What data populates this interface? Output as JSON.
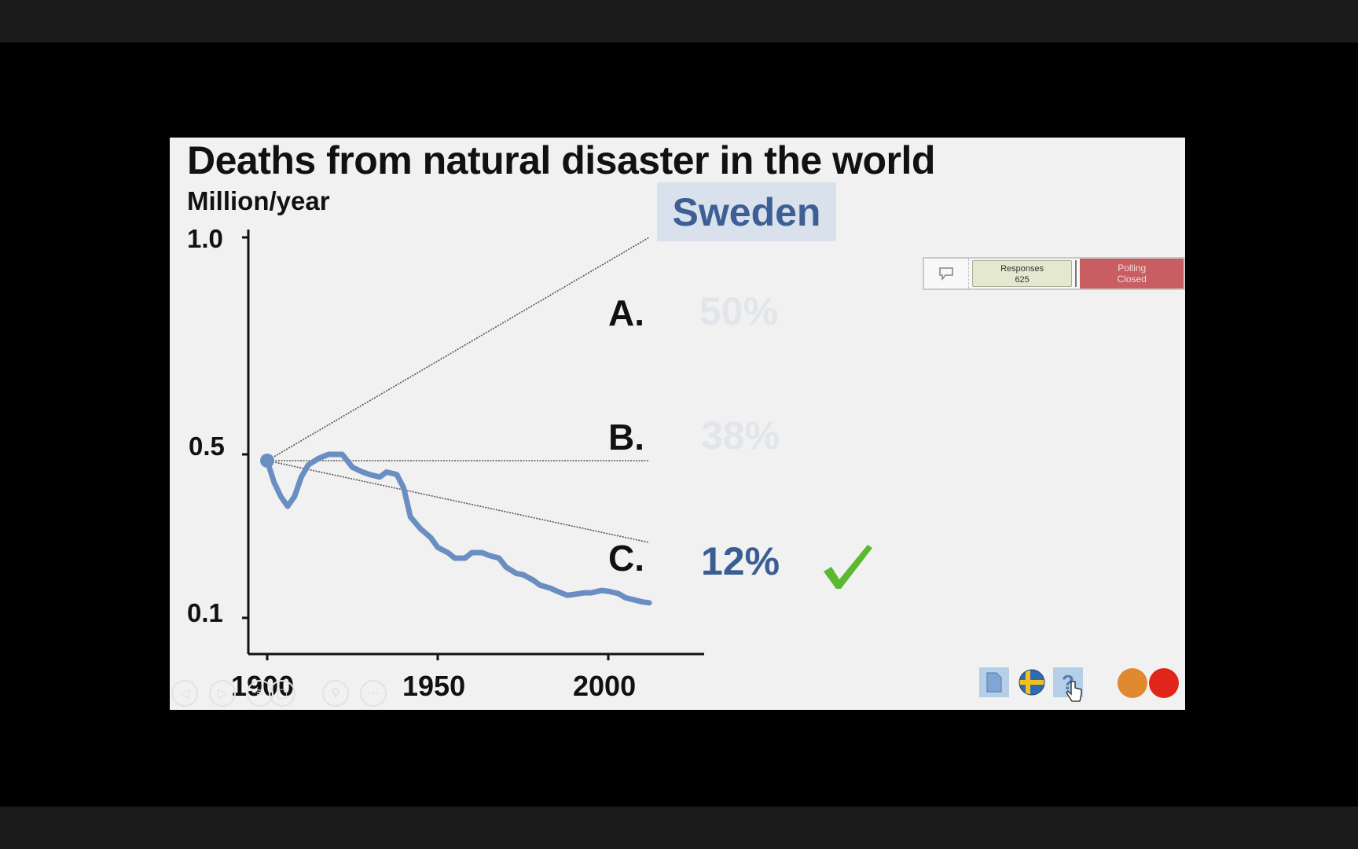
{
  "slide": {
    "title": "Deaths from natural disaster in the world",
    "unit_label": "Million/year",
    "highlight_label": "Sweden"
  },
  "chart_data": {
    "type": "line",
    "title": "Deaths from natural disaster in the world",
    "ylabel": "Million/year",
    "xlabel": "",
    "y_scale": "log",
    "y_ticks": [
      "1.0",
      "0.5",
      "0.1"
    ],
    "y_tick_values": [
      1.0,
      0.5,
      0.1
    ],
    "x_ticks": [
      "1900",
      "1950",
      "2000"
    ],
    "x_tick_values": [
      1900,
      1950,
      2000
    ],
    "xlim": [
      1900,
      2030
    ],
    "series": [
      {
        "x": [
          1900,
          1902,
          1904,
          1906,
          1908,
          1910,
          1912,
          1915,
          1918,
          1920,
          1922,
          1925,
          1928,
          1930,
          1933,
          1935,
          1938,
          1940,
          1942,
          1945,
          1948,
          1950,
          1953,
          1955,
          1958,
          1960,
          1963,
          1965,
          1968,
          1970,
          1973,
          1975,
          1978,
          1980,
          1983,
          1985,
          1988,
          1990,
          1993,
          1995,
          1998,
          2000,
          2003,
          2005,
          2008,
          2010,
          2012
        ],
        "values": [
          0.47,
          0.38,
          0.33,
          0.3,
          0.33,
          0.4,
          0.45,
          0.48,
          0.5,
          0.5,
          0.5,
          0.44,
          0.42,
          0.41,
          0.4,
          0.42,
          0.41,
          0.36,
          0.27,
          0.24,
          0.22,
          0.2,
          0.19,
          0.18,
          0.18,
          0.19,
          0.19,
          0.185,
          0.18,
          0.165,
          0.155,
          0.153,
          0.145,
          0.138,
          0.134,
          0.13,
          0.125,
          0.126,
          0.128,
          0.128,
          0.131,
          0.13,
          0.127,
          0.122,
          0.119,
          0.117,
          0.116
        ],
        "color": "#6b8ec2"
      }
    ],
    "projection_lines": [
      {
        "label": "A.",
        "from": [
          1900,
          0.47
        ],
        "to": [
          2012,
          1.0
        ]
      },
      {
        "label": "B.",
        "from": [
          1900,
          0.47
        ],
        "to": [
          2012,
          0.47
        ]
      },
      {
        "label": "C.",
        "from": [
          1900,
          0.47
        ],
        "to": [
          2012,
          0.21
        ]
      }
    ]
  },
  "options": [
    {
      "letter": "A.",
      "percent": "50%"
    },
    {
      "letter": "B.",
      "percent": "38%"
    },
    {
      "letter": "C.",
      "percent": "12%",
      "correct": true
    }
  ],
  "poll": {
    "responses_label": "Responses",
    "responses_count": "625",
    "status_line1": "Polling",
    "status_line2": "Closed"
  },
  "nav_buttons": [
    "previous-icon",
    "play-icon",
    "menu-icon",
    "page-icon",
    "zoom-icon",
    "more-icon"
  ],
  "colors": {
    "line": "#6b8ec2",
    "accent": "#3a5d94",
    "check": "#5cb82f",
    "orange": "#e0892f",
    "red": "#e1251b"
  }
}
